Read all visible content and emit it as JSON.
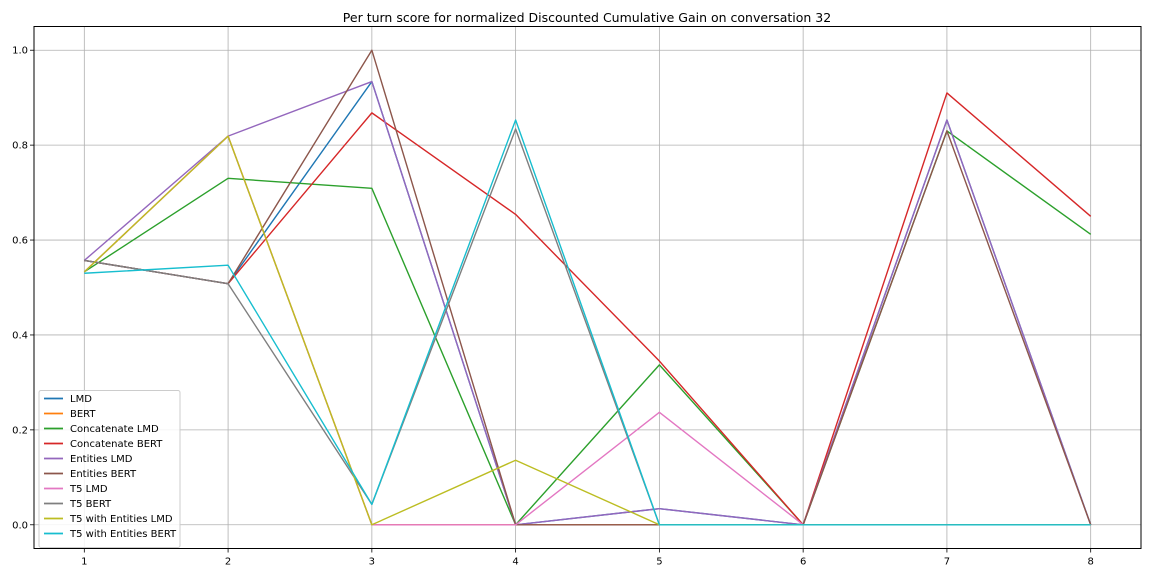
{
  "chart_data": {
    "type": "line",
    "title": "Per turn score for normalized Discounted Cumulative Gain on conversation 32",
    "xlabel": "",
    "ylabel": "",
    "x": [
      1,
      2,
      3,
      4,
      5,
      6,
      7,
      8
    ],
    "x_ticks": [
      "1",
      "2",
      "3",
      "4",
      "5",
      "6",
      "7",
      "8"
    ],
    "y_ticks": [
      "0.0",
      "0.2",
      "0.4",
      "0.6",
      "0.8",
      "1.0"
    ],
    "xlim": [
      0.65,
      8.35
    ],
    "ylim": [
      -0.05,
      1.05
    ],
    "grid": true,
    "legend_position": "lower-left",
    "series": [
      {
        "name": "LMD",
        "color": "#1f77b4",
        "values": [
          0.557,
          0.508,
          0.934,
          0.0,
          0.034,
          0.0,
          0.853,
          0.0
        ]
      },
      {
        "name": "BERT",
        "color": "#ff7f0e",
        "values": [
          0.533,
          0.819,
          0.0,
          0.0,
          0.0,
          0.0,
          0.0,
          0.0
        ]
      },
      {
        "name": "Concatenate LMD",
        "color": "#2ca02c",
        "values": [
          0.533,
          0.73,
          0.709,
          0.0,
          0.337,
          0.0,
          0.83,
          0.612
        ]
      },
      {
        "name": "Concatenate BERT",
        "color": "#d62728",
        "values": [
          0.557,
          0.508,
          0.868,
          0.654,
          0.345,
          0.0,
          0.91,
          0.65
        ]
      },
      {
        "name": "Entities LMD",
        "color": "#9467bd",
        "values": [
          0.557,
          0.819,
          0.934,
          0.0,
          0.034,
          0.0,
          0.853,
          0.0
        ]
      },
      {
        "name": "Entities BERT",
        "color": "#8c564b",
        "values": [
          0.557,
          0.508,
          1.0,
          0.0,
          0.0,
          0.0,
          0.83,
          0.0
        ]
      },
      {
        "name": "T5 LMD",
        "color": "#e377c2",
        "values": [
          0.533,
          0.819,
          0.0,
          0.0,
          0.237,
          0.0,
          0.0,
          0.0
        ]
      },
      {
        "name": "T5 BERT",
        "color": "#7f7f7f",
        "values": [
          0.557,
          0.508,
          0.043,
          0.834,
          0.0,
          0.0,
          0.0,
          0.0
        ]
      },
      {
        "name": "T5 with Entities LMD",
        "color": "#bcbd22",
        "values": [
          0.533,
          0.819,
          0.0,
          0.136,
          0.0,
          0.0,
          0.0,
          0.0
        ]
      },
      {
        "name": "T5 with Entities BERT",
        "color": "#17becf",
        "values": [
          0.53,
          0.547,
          0.043,
          0.853,
          0.0,
          0.0,
          0.0,
          0.0
        ]
      }
    ]
  }
}
